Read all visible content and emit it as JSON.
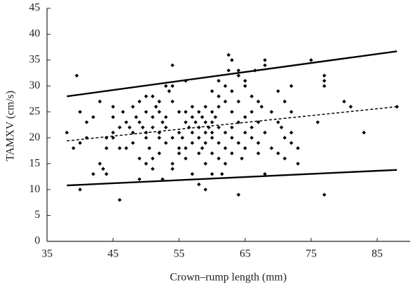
{
  "chart_data": {
    "type": "scatter",
    "xlabel": "Crown–rump length (mm)",
    "ylabel": "TAMXV (cm/s)",
    "xlim": [
      35,
      90
    ],
    "xticks": [
      35,
      45,
      55,
      65,
      75,
      85
    ],
    "ylim": [
      0,
      45
    ],
    "yticks": [
      0,
      5,
      10,
      15,
      20,
      25,
      30,
      35,
      40,
      45
    ],
    "color": "#000000",
    "x": [
      38,
      39,
      39.5,
      40,
      40,
      40,
      41,
      41,
      42,
      42,
      43,
      43,
      43.5,
      44,
      44,
      44,
      45,
      45,
      45,
      45,
      46,
      46,
      46,
      46.5,
      47,
      47,
      47.5,
      48,
      48,
      48,
      48.5,
      49,
      49,
      49,
      49,
      49.5,
      50,
      50,
      50,
      50,
      50,
      50.5,
      51,
      51,
      51,
      51,
      51,
      51.5,
      52,
      52,
      52,
      52,
      52,
      52.5,
      52.5,
      53,
      53,
      53,
      53,
      53.5,
      54,
      54,
      54,
      54,
      54,
      54,
      55,
      55,
      55,
      55,
      55.5,
      56,
      56,
      56,
      56,
      56,
      56.5,
      57,
      57,
      57,
      57,
      57,
      57.5,
      58,
      58,
      58,
      58,
      58,
      58.5,
      58.5,
      59,
      59,
      59,
      59,
      59,
      59,
      59.5,
      60,
      60,
      60,
      60,
      60,
      60,
      60,
      60.5,
      61,
      61,
      61,
      61,
      61,
      61,
      61.5,
      62,
      62,
      62,
      62,
      62,
      62.5,
      62.5,
      63,
      63,
      63,
      63,
      63,
      63,
      64,
      64,
      64,
      64,
      64,
      64,
      64.5,
      65,
      65,
      65,
      65,
      65,
      66,
      66,
      66,
      66,
      66.5,
      67,
      67,
      67,
      67,
      67.5,
      68,
      68,
      68,
      68,
      69,
      69,
      70,
      70,
      70,
      70.5,
      71,
      71,
      71,
      72,
      72,
      72,
      72,
      73,
      73,
      75,
      76,
      77,
      77,
      77,
      77,
      80,
      81,
      83,
      88
    ],
    "values": [
      21,
      18,
      32,
      25,
      19,
      10,
      23,
      20,
      13,
      24,
      27,
      15,
      14,
      18,
      20,
      13,
      20,
      24,
      26,
      21,
      8,
      22,
      18,
      25,
      18,
      23,
      22,
      26,
      21,
      19,
      24,
      27,
      23,
      12,
      16,
      22,
      25,
      28,
      21,
      20,
      15,
      18,
      24,
      22,
      28,
      16,
      14,
      26,
      27,
      25,
      21,
      17,
      20,
      23,
      12,
      30,
      24,
      22,
      19,
      29,
      34,
      30,
      27,
      20,
      15,
      14,
      25,
      21,
      18,
      17,
      20,
      31,
      25,
      23,
      18,
      16,
      22,
      26,
      24,
      21,
      19,
      13,
      23,
      25,
      22,
      20,
      17,
      11,
      24,
      18,
      26,
      23,
      21,
      19,
      10,
      15,
      22,
      29,
      25,
      23,
      21,
      20,
      17,
      13,
      24,
      31,
      28,
      26,
      22,
      19,
      16,
      13,
      30,
      27,
      21,
      18,
      15,
      36,
      33,
      35,
      29,
      25,
      22,
      20,
      17,
      33,
      32,
      27,
      23,
      19,
      9,
      16,
      31,
      30,
      24,
      21,
      18,
      28,
      25,
      22,
      20,
      33,
      27,
      23,
      19,
      17,
      26,
      35,
      34,
      21,
      13,
      25,
      18,
      29,
      23,
      17,
      22,
      27,
      16,
      20,
      30,
      25,
      21,
      19,
      15,
      18,
      35,
      23,
      32,
      31,
      30,
      9,
      27,
      26,
      21,
      26
    ],
    "lines": [
      {
        "x": [
          38,
          88
        ],
        "values": [
          28,
          36.7
        ],
        "dashed": false
      },
      {
        "x": [
          38,
          88
        ],
        "values": [
          19.4,
          26
        ],
        "dashed": true
      },
      {
        "x": [
          38,
          88
        ],
        "values": [
          10.8,
          13.8
        ],
        "dashed": false
      }
    ]
  }
}
